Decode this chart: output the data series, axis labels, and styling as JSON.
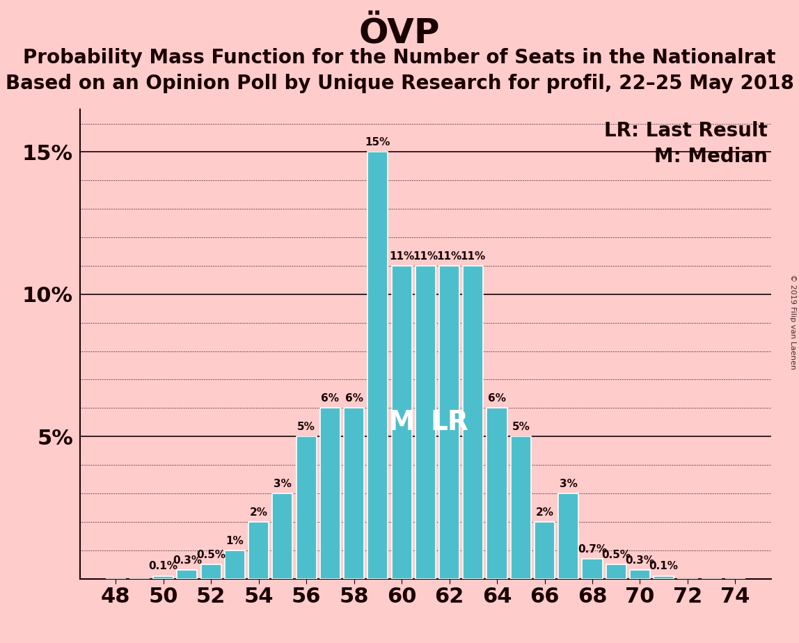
{
  "title": "ÖVP",
  "subtitle1": "Probability Mass Function for the Number of Seats in the Nationalrat",
  "subtitle2": "Based on an Opinion Poll by Unique Research for profil, 22–25 May 2018",
  "legend_lr": "LR: Last Result",
  "legend_m": "M: Median",
  "watermark": "© 2019 Filip van Laenen",
  "seats": [
    48,
    49,
    50,
    51,
    52,
    53,
    54,
    55,
    56,
    57,
    58,
    59,
    60,
    61,
    62,
    63,
    64,
    65,
    66,
    67,
    68,
    69,
    70,
    71,
    72,
    73,
    74
  ],
  "probabilities": [
    0.0,
    0.0,
    0.1,
    0.3,
    0.5,
    1.0,
    2.0,
    3.0,
    5.0,
    6.0,
    6.0,
    15.0,
    11.0,
    11.0,
    11.0,
    11.0,
    6.0,
    5.0,
    2.0,
    3.0,
    0.7,
    0.5,
    0.3,
    0.1,
    0.0,
    0.0,
    0.0
  ],
  "bar_color": "#4dbfcc",
  "background_color": "#ffcccc",
  "text_color": "#1a0000",
  "median": 60,
  "last_result": 62,
  "ylim_max": 16.5,
  "bar_label_fontsize": 11,
  "title_fontsize": 36,
  "subtitle_fontsize": 20,
  "tick_fontsize": 22,
  "legend_fontsize": 20
}
